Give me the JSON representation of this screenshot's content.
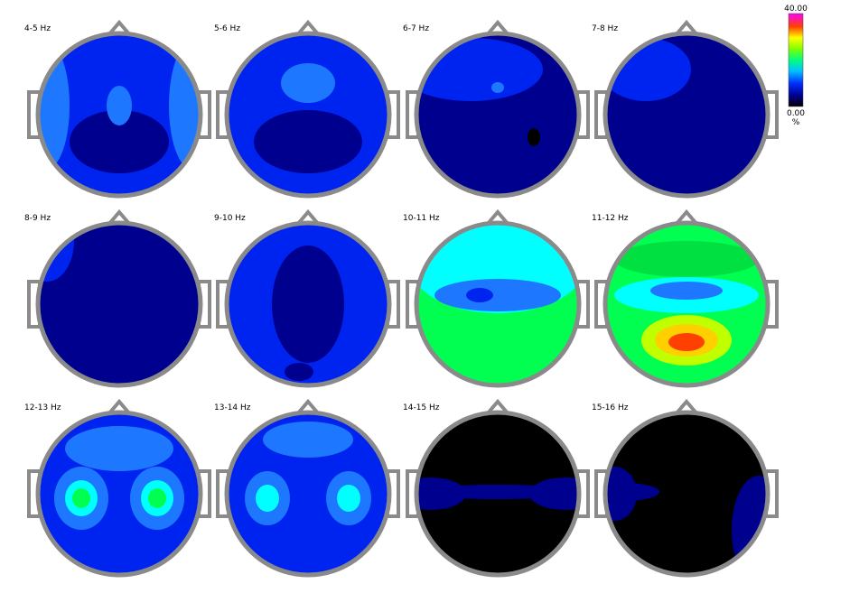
{
  "panels": [
    {
      "label": "4-5 Hz"
    },
    {
      "label": "5-6 Hz"
    },
    {
      "label": "6-7 Hz"
    },
    {
      "label": "7-8 Hz"
    },
    {
      "label": "8-9 Hz"
    },
    {
      "label": "9-10 Hz"
    },
    {
      "label": "10-11 Hz"
    },
    {
      "label": "11-12 Hz"
    },
    {
      "label": "12-13 Hz"
    },
    {
      "label": "13-14 Hz"
    },
    {
      "label": "14-15 Hz"
    },
    {
      "label": "15-16 Hz"
    }
  ],
  "colorbar": {
    "max_label": "40.00",
    "min_label": "0.00",
    "unit": "%"
  }
}
